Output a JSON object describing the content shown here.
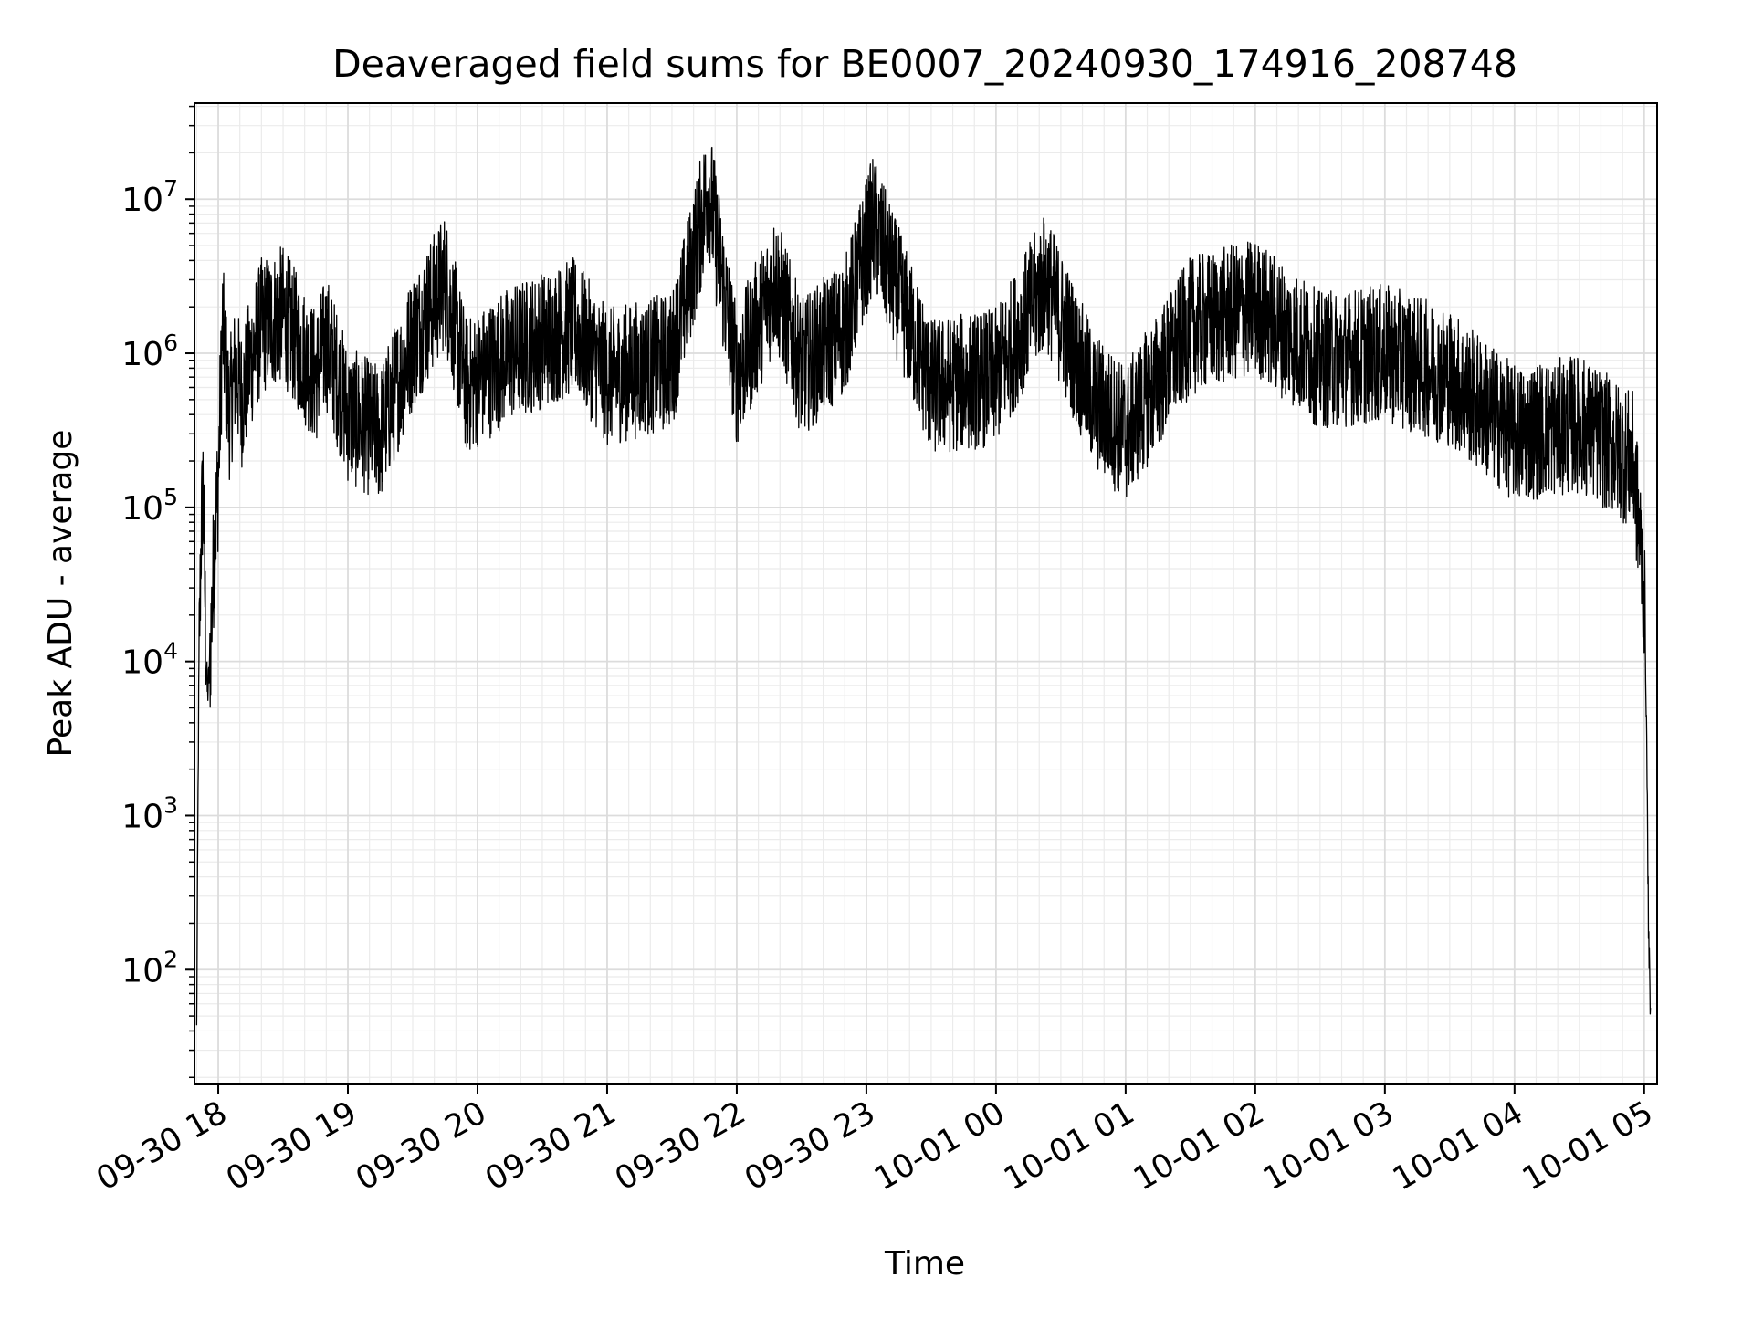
{
  "chart_data": {
    "type": "line",
    "title": "Deaveraged field sums for BE0007_20240930_174916_208748",
    "xlabel": "Time",
    "ylabel": "Peak ADU - average",
    "xlim": [
      "2024-09-30 17:49:00",
      "2024-10-01 05:06:00"
    ],
    "yscale": "log",
    "ylim": [
      18,
      42000000
    ],
    "grid": "major and minor, both axes",
    "line_color": "#000000",
    "x_ticks": [
      {
        "t": "2024-09-30 18:00",
        "label": "09-30 18"
      },
      {
        "t": "2024-09-30 19:00",
        "label": "09-30 19"
      },
      {
        "t": "2024-09-30 20:00",
        "label": "09-30 20"
      },
      {
        "t": "2024-09-30 21:00",
        "label": "09-30 21"
      },
      {
        "t": "2024-09-30 22:00",
        "label": "09-30 22"
      },
      {
        "t": "2024-09-30 23:00",
        "label": "09-30 23"
      },
      {
        "t": "2024-10-01 00:00",
        "label": "10-01 00"
      },
      {
        "t": "2024-10-01 01:00",
        "label": "10-01 01"
      },
      {
        "t": "2024-10-01 02:00",
        "label": "10-01 02"
      },
      {
        "t": "2024-10-01 03:00",
        "label": "10-01 03"
      },
      {
        "t": "2024-10-01 04:00",
        "label": "10-01 04"
      },
      {
        "t": "2024-10-01 05:00",
        "label": "10-01 05"
      }
    ],
    "y_ticks": [
      {
        "value": 100,
        "base": "10",
        "exp": "2"
      },
      {
        "value": 1000,
        "base": "10",
        "exp": "3"
      },
      {
        "value": 10000,
        "base": "10",
        "exp": "4"
      },
      {
        "value": 100000,
        "base": "10",
        "exp": "5"
      },
      {
        "value": 1000000,
        "base": "10",
        "exp": "6"
      },
      {
        "value": 10000000,
        "base": "10",
        "exp": "7"
      }
    ],
    "series": [
      {
        "x": [
          "2024-09-30 17:50",
          "2024-09-30 17:51",
          "2024-09-30 17:52",
          "2024-09-30 17:53",
          "2024-09-30 17:54",
          "2024-09-30 17:55",
          "2024-09-30 17:56",
          "2024-09-30 17:58",
          "2024-09-30 18:00",
          "2024-09-30 18:02",
          "2024-09-30 18:05",
          "2024-09-30 18:08",
          "2024-09-30 18:11",
          "2024-09-30 18:15",
          "2024-09-30 18:20",
          "2024-09-30 18:30",
          "2024-09-30 18:45",
          "2024-09-30 18:50",
          "2024-09-30 19:00",
          "2024-09-30 19:15",
          "2024-09-30 19:30",
          "2024-09-30 19:45",
          "2024-09-30 19:55",
          "2024-09-30 20:15",
          "2024-09-30 20:45",
          "2024-09-30 21:00",
          "2024-09-30 21:30",
          "2024-09-30 21:47",
          "2024-09-30 22:00",
          "2024-09-30 22:18",
          "2024-09-30 22:30",
          "2024-09-30 22:50",
          "2024-09-30 23:03",
          "2024-09-30 23:30",
          "2024-10-01 00:00",
          "2024-10-01 00:23",
          "2024-10-01 00:45",
          "2024-10-01 01:00",
          "2024-10-01 01:30",
          "2024-10-01 02:00",
          "2024-10-01 02:30",
          "2024-10-01 03:00",
          "2024-10-01 03:30",
          "2024-10-01 04:00",
          "2024-10-01 04:30",
          "2024-10-01 04:55",
          "2024-10-01 05:00",
          "2024-10-01 05:01",
          "2024-10-01 05:02",
          "2024-10-01 05:03"
        ],
        "y": [
          40,
          8000,
          60000,
          150000,
          20000,
          6000,
          9000,
          50000,
          150000,
          1500000,
          400000,
          800000,
          500000,
          900000,
          1500000,
          1800000,
          700000,
          1200000,
          400000,
          300000,
          1200000,
          3000000,
          600000,
          1000000,
          1500000,
          700000,
          900000,
          12000000,
          700000,
          3000000,
          800000,
          1500000,
          7000000,
          600000,
          700000,
          3000000,
          500000,
          300000,
          1500000,
          2000000,
          900000,
          1000000,
          700000,
          300000,
          350000,
          200000,
          30000,
          5000,
          200,
          40
        ]
      }
    ]
  }
}
